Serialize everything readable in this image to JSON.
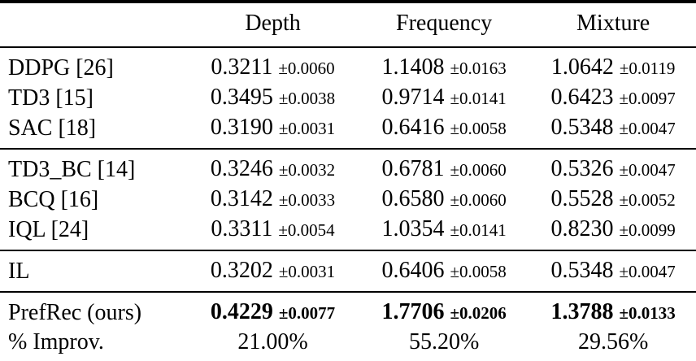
{
  "page": {
    "background_color": "#ffffff",
    "text_color": "#000000",
    "rule_color": "#000000"
  },
  "table": {
    "headers": {
      "col1": "",
      "depth": "Depth",
      "frequency": "Frequency",
      "mixture": "Mixture"
    },
    "groups": [
      {
        "rows": [
          {
            "label": "DDPG [26]",
            "depth": "0.3211",
            "depth_err": "±0.0060",
            "frequency": "1.1408",
            "frequency_err": "±0.0163",
            "mixture": "1.0642",
            "mixture_err": "±0.0119"
          },
          {
            "label": "TD3 [15]",
            "depth": "0.3495",
            "depth_err": "±0.0038",
            "frequency": "0.9714",
            "frequency_err": "±0.0141",
            "mixture": "0.6423",
            "mixture_err": "±0.0097"
          },
          {
            "label": "SAC [18]",
            "depth": "0.3190",
            "depth_err": "±0.0031",
            "frequency": "0.6416",
            "frequency_err": "±0.0058",
            "mixture": "0.5348",
            "mixture_err": "±0.0047"
          }
        ]
      },
      {
        "rows": [
          {
            "label": "TD3_BC [14]",
            "depth": "0.3246",
            "depth_err": "±0.0032",
            "frequency": "0.6781",
            "frequency_err": "±0.0060",
            "mixture": "0.5326",
            "mixture_err": "±0.0047"
          },
          {
            "label": "BCQ [16]",
            "depth": "0.3142",
            "depth_err": "±0.0033",
            "frequency": "0.6580",
            "frequency_err": "±0.0060",
            "mixture": "0.5528",
            "mixture_err": "±0.0052"
          },
          {
            "label": "IQL [24]",
            "depth": "0.3311",
            "depth_err": "±0.0054",
            "frequency": "1.0354",
            "frequency_err": "±0.0141",
            "mixture": "0.8230",
            "mixture_err": "±0.0099"
          }
        ]
      },
      {
        "rows": [
          {
            "label": "IL",
            "depth": "0.3202",
            "depth_err": "±0.0031",
            "frequency": "0.6406",
            "frequency_err": "±0.0058",
            "mixture": "0.5348",
            "mixture_err": "±0.0047"
          }
        ]
      },
      {
        "rows": [
          {
            "label": "PrefRec (ours)",
            "depth": "0.4229",
            "depth_err": "±0.0077",
            "frequency": "1.7706",
            "frequency_err": "±0.0206",
            "mixture": "1.3788",
            "mixture_err": "±0.0133"
          },
          {
            "label": "% Improv.",
            "depth": "21.00%",
            "frequency": "55.20%",
            "mixture": "29.56%"
          }
        ]
      }
    ]
  }
}
